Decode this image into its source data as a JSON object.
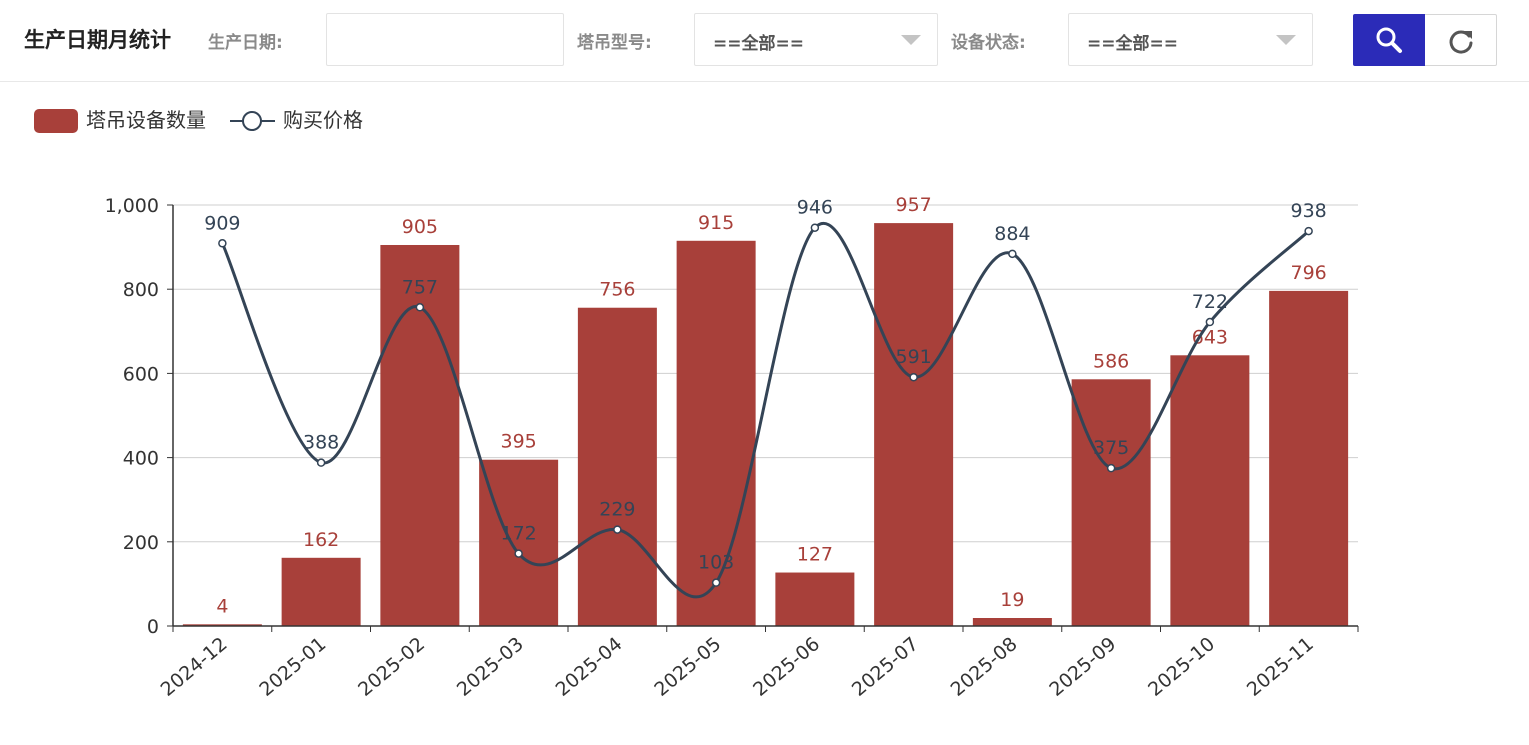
{
  "header": {
    "title": "生产日期月统计",
    "date_label": "生产日期:",
    "date_value": "",
    "model_label": "塔吊型号:",
    "model_value": "==全部==",
    "status_label": "设备状态:",
    "status_value": "==全部==",
    "search_icon": "search-icon",
    "reset_icon": "refresh-icon"
  },
  "colors": {
    "bar": "#a8403a",
    "line": "#344456",
    "accent": "#2b2bb8"
  },
  "chart_data": {
    "type": "bar",
    "categories": [
      "2024-12",
      "2025-01",
      "2025-02",
      "2025-03",
      "2025-04",
      "2025-05",
      "2025-06",
      "2025-07",
      "2025-08",
      "2025-09",
      "2025-10",
      "2025-11"
    ],
    "series": [
      {
        "name": "塔吊设备数量",
        "type": "bar",
        "values": [
          4,
          162,
          905,
          395,
          756,
          915,
          127,
          957,
          19,
          586,
          643,
          796
        ]
      },
      {
        "name": "购买价格",
        "type": "line",
        "smooth": true,
        "values": [
          909,
          388,
          757,
          172,
          229,
          103,
          946,
          591,
          884,
          375,
          722,
          938
        ]
      }
    ],
    "yticks": [
      "0",
      "200",
      "400",
      "600",
      "800",
      "1,000"
    ],
    "ylim": [
      0,
      1000
    ],
    "legend_position": "top-left",
    "grid": true
  }
}
